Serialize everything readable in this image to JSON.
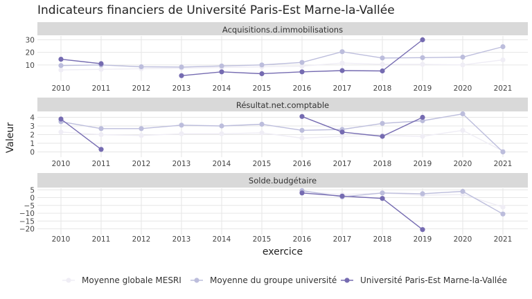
{
  "title": "Indicateurs financiers de Université Paris-Est Marne-la-Vallée",
  "chart_data": {
    "type": "line",
    "xlabel": "exercice",
    "ylabel": "Valeur",
    "x": [
      2010,
      2011,
      2012,
      2013,
      2014,
      2015,
      2016,
      2017,
      2018,
      2019,
      2020,
      2021
    ],
    "legend_position": "bottom",
    "series_styles": [
      {
        "name": "Moyenne globale MESRI",
        "color": "#efedf5"
      },
      {
        "name": "Moyenne du groupe université",
        "color": "#bcbddc"
      },
      {
        "name": "Université Paris-Est Marne-la-Vallée",
        "color": "#756bb1"
      }
    ],
    "panels": [
      {
        "name": "Acquisitions.d.immobilisations",
        "yticks": [
          10,
          20,
          30
        ],
        "ylim": [
          0,
          33
        ],
        "series": [
          {
            "name": "Moyenne globale MESRI",
            "values": [
              6,
              6.5,
              7,
              7.5,
              8,
              8.5,
              9,
              11.5,
              10.5,
              10.5,
              10,
              14
            ]
          },
          {
            "name": "Moyenne du groupe université",
            "values": [
              9.5,
              10,
              8.5,
              8.3,
              9.2,
              10,
              12,
              20.5,
              15.5,
              15.8,
              16.2,
              24.5
            ]
          },
          {
            "name": "Université Paris-Est Marne-la-Vallée",
            "values": [
              14.5,
              11,
              null,
              1.5,
              4.5,
              3,
              4.5,
              5.5,
              5.2,
              30,
              null,
              null
            ]
          }
        ]
      },
      {
        "name": "Résultat.net.comptable",
        "yticks": [
          0,
          1,
          2,
          3,
          4
        ],
        "ylim": [
          -0.2,
          4.6
        ],
        "series": [
          {
            "name": "Moyenne globale MESRI",
            "values": [
              2.3,
              2,
              1.9,
              2.1,
              2.1,
              2.2,
              1.6,
              1.8,
              1.9,
              1.8,
              2.5,
              0.1
            ]
          },
          {
            "name": "Moyenne du groupe université",
            "values": [
              3.5,
              2.7,
              2.7,
              3.1,
              3,
              3.2,
              2.5,
              2.6,
              3.3,
              3.6,
              4.4,
              0
            ]
          },
          {
            "name": "Université Paris-Est Marne-la-Vallée",
            "values": [
              3.8,
              0.3,
              null,
              null,
              null,
              null,
              4.1,
              2.3,
              1.8,
              4,
              null,
              null
            ]
          }
        ]
      },
      {
        "name": "Solde.budgétaire",
        "yticks": [
          -20,
          -15,
          -10,
          -5,
          0,
          5
        ],
        "ylim": [
          -21.5,
          6
        ],
        "series": [
          {
            "name": "Moyenne globale MESRI",
            "values": [
              null,
              null,
              null,
              null,
              null,
              null,
              4,
              2,
              3,
              1.5,
              2,
              -6
            ]
          },
          {
            "name": "Moyenne du groupe université",
            "values": [
              null,
              null,
              null,
              null,
              null,
              null,
              4.5,
              0.5,
              3,
              2.5,
              4,
              -10.5
            ]
          },
          {
            "name": "Université Paris-Est Marne-la-Vallée",
            "values": [
              null,
              null,
              null,
              null,
              null,
              null,
              3,
              1,
              -0.5,
              -20.5,
              null,
              null
            ]
          }
        ]
      }
    ]
  }
}
